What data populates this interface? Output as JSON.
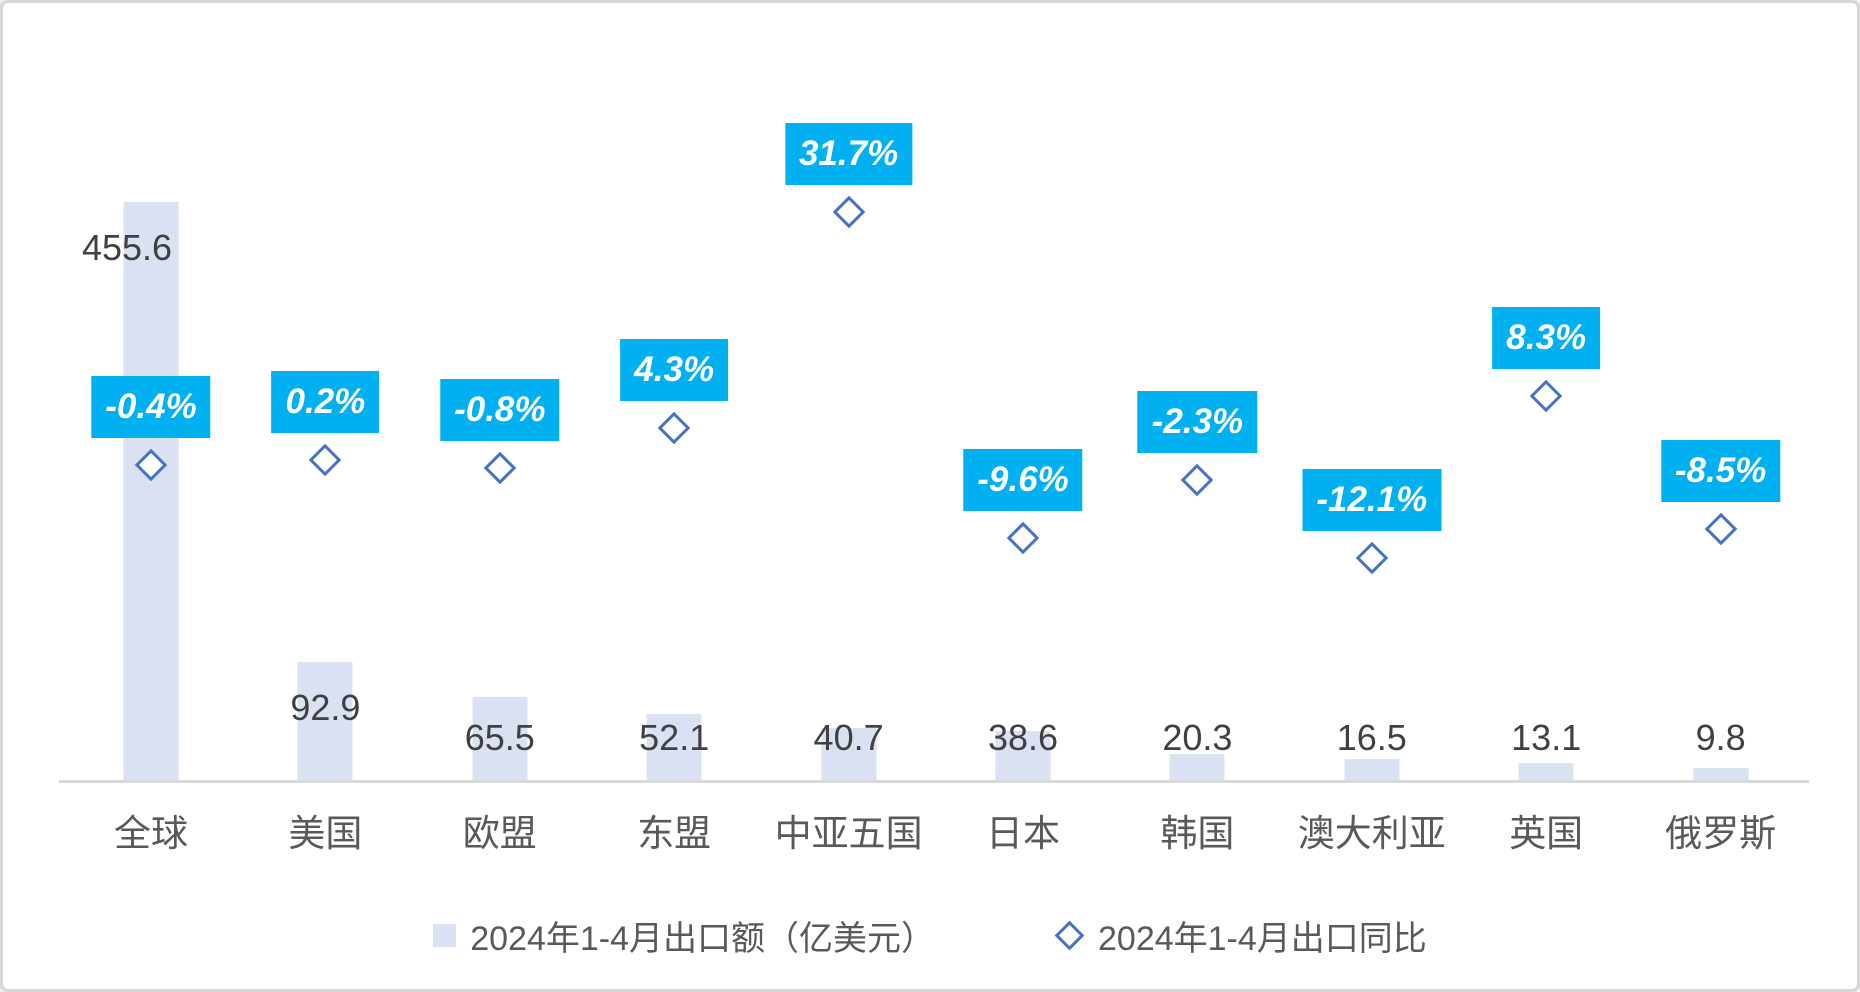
{
  "chart_data": {
    "type": "bar",
    "subtype": "combo: bar (left axis) + scatter with open-diamond markers (right % axis)",
    "title": "",
    "categories": [
      "全球",
      "美国",
      "欧盟",
      "东盟",
      "中亚五国",
      "日本",
      "韩国",
      "澳大利亚",
      "英国",
      "俄罗斯"
    ],
    "series": [
      {
        "name": "2024年1-4月出口额（亿美元）",
        "type": "bar",
        "axis": "left",
        "values": [
          455.6,
          92.9,
          65.5,
          52.1,
          40.7,
          38.6,
          20.3,
          16.5,
          13.1,
          9.8
        ],
        "value_labels": [
          "455.6",
          "92.9",
          "65.5",
          "52.1",
          "40.7",
          "38.6",
          "20.3",
          "16.5",
          "13.1",
          "9.8"
        ],
        "color": "#D9E1F2"
      },
      {
        "name": "2024年1-4月出口同比",
        "type": "scatter",
        "marker": "open-diamond",
        "axis": "right",
        "values": [
          -0.4,
          0.2,
          -0.8,
          4.3,
          31.7,
          -9.6,
          -2.3,
          -12.1,
          8.3,
          -8.5
        ],
        "value_labels": [
          "-0.4%",
          "0.2%",
          "-0.8%",
          "4.3%",
          "31.7%",
          "-9.6%",
          "-2.3%",
          "-12.1%",
          "8.3%",
          "-8.5%"
        ],
        "marker_color": "#4472C4",
        "label_bg": "#00B0F0",
        "label_color": "#FFFFFF"
      }
    ],
    "left_axis": {
      "min": 0,
      "max": 500,
      "labels_visible": false
    },
    "right_axis": {
      "min": -40,
      "max": 40,
      "unit": "%",
      "labels_visible": false
    },
    "gridlines": false,
    "legend_position": "bottom",
    "colors": {
      "axis_line": "#D9D9D9",
      "bar_fill": "#D9E1F2",
      "diamond_stroke": "#4472C4",
      "pct_label_bg": "#00B0F0",
      "pct_label_text": "#FFFFFF",
      "value_label_text": "#404040",
      "category_label_text": "#595959",
      "card_border": "#D6D6D6",
      "background": "#FFFFFF"
    }
  }
}
